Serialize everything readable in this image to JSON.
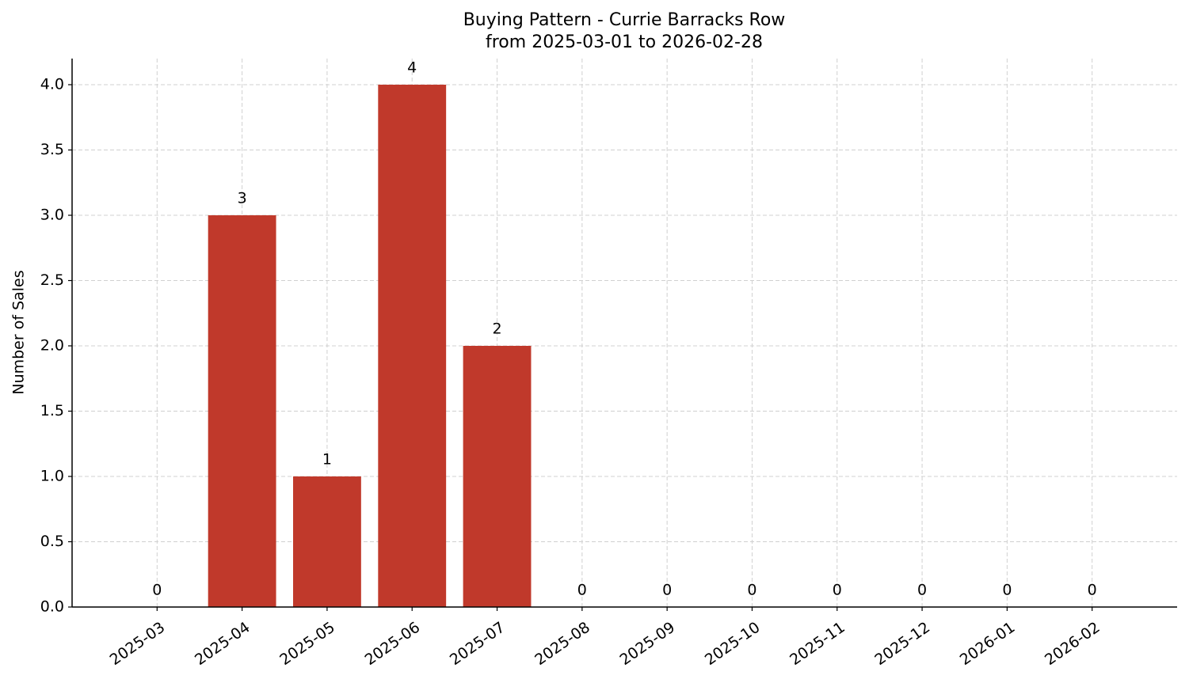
{
  "chart_data": {
    "type": "bar",
    "title": "Buying Pattern - Currie Barracks Row",
    "subtitle": "from 2025-03-01 to 2026-02-28",
    "y_label": "Number of Sales",
    "categories": [
      "2025-03",
      "2025-04",
      "2025-05",
      "2025-06",
      "2025-07",
      "2025-08",
      "2025-09",
      "2025-10",
      "2025-11",
      "2025-12",
      "2026-01",
      "2026-02"
    ],
    "values": [
      0,
      3,
      1,
      4,
      2,
      0,
      0,
      0,
      0,
      0,
      0,
      0
    ],
    "color": "#c0392b",
    "ylim": [
      0,
      4.2
    ],
    "yticks": [
      {
        "value": 0,
        "label": "0.0"
      },
      0.5,
      {
        "value": 1,
        "label": "1.0"
      },
      1.5,
      {
        "value": 2,
        "label": "2.0"
      },
      2.5,
      {
        "value": 3,
        "label": "3.0"
      },
      3.5,
      {
        "value": 4,
        "label": "4.0"
      }
    ],
    "grid": true
  }
}
